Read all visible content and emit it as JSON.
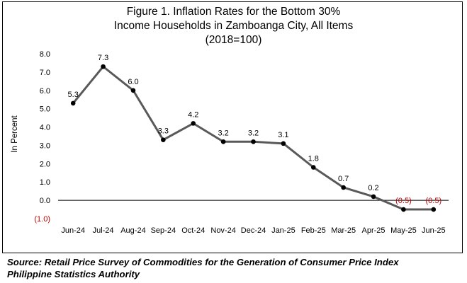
{
  "chart_data": {
    "type": "line",
    "title_lines": [
      "Figure 1. Inflation Rates for the Bottom 30%",
      "Income Households in Zamboanga City, All Items",
      "(2018=100)"
    ],
    "xlabel": "",
    "ylabel": "In Percent",
    "ylim": [
      -1.0,
      8.0
    ],
    "y_ticks": [
      "(1.0)",
      "0.0",
      "1.0",
      "2.0",
      "3.0",
      "4.0",
      "5.0",
      "6.0",
      "7.0",
      "8.0"
    ],
    "y_tick_values": [
      -1,
      0,
      1,
      2,
      3,
      4,
      5,
      6,
      7,
      8
    ],
    "categories": [
      "Jun-24",
      "Jul-24",
      "Aug-24",
      "Sep-24",
      "Oct-24",
      "Nov-24",
      "Dec-24",
      "Jan-25",
      "Feb-25",
      "Mar-25",
      "Apr-25",
      "May-25",
      "Jun-25"
    ],
    "series": [
      {
        "values": [
          5.3,
          7.3,
          6.0,
          3.3,
          4.2,
          3.2,
          3.2,
          3.1,
          1.8,
          0.7,
          0.2,
          -0.5,
          -0.5
        ],
        "labels": [
          "5.3",
          "7.3",
          "6.0",
          "3.3",
          "4.2",
          "3.2",
          "3.2",
          "3.1",
          "1.8",
          "0.7",
          "0.2",
          "(0.5)",
          "(0.5)"
        ]
      }
    ],
    "grid": false,
    "colors": {
      "line": "#595959",
      "marker": "#000000",
      "negative_label": "#c00000",
      "axis": "#000000",
      "tick_label": "#000000",
      "negative_tick_label": "#c00000"
    }
  },
  "source": {
    "line1": "Source: Retail Price Survey of Commodities for the Generation of Consumer Price Index",
    "line2": "Philippine Statistics Authority"
  }
}
